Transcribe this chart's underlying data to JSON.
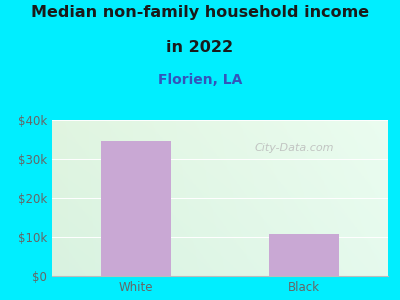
{
  "title_line1": "Median non-family household income",
  "title_line2": "in 2022",
  "subtitle": "Florien, LA",
  "categories": [
    "White",
    "Black"
  ],
  "values": [
    34500,
    10700
  ],
  "bar_color": "#c9a8d4",
  "ylim": [
    0,
    40000
  ],
  "yticks": [
    0,
    10000,
    20000,
    30000,
    40000
  ],
  "ytick_labels": [
    "$0",
    "$10k",
    "$20k",
    "$30k",
    "$40k"
  ],
  "figure_bg_color": "#00eeff",
  "plot_bg_color_topleft": [
    0.88,
    0.96,
    0.88
  ],
  "plot_bg_color_topright": [
    0.92,
    0.99,
    0.94
  ],
  "plot_bg_color_bottomleft": [
    0.85,
    0.95,
    0.88
  ],
  "plot_bg_color_bottomright": [
    0.9,
    0.98,
    0.93
  ],
  "title_color": "#1a1a1a",
  "subtitle_color": "#3355bb",
  "tick_color": "#666666",
  "watermark_text": "City-Data.com",
  "watermark_color": "#bbbbbb",
  "grid_color": "#ffffff",
  "spine_color": "#bbbbbb",
  "title_fontsize": 11.5,
  "subtitle_fontsize": 10,
  "tick_fontsize": 8.5,
  "watermark_fontsize": 8
}
